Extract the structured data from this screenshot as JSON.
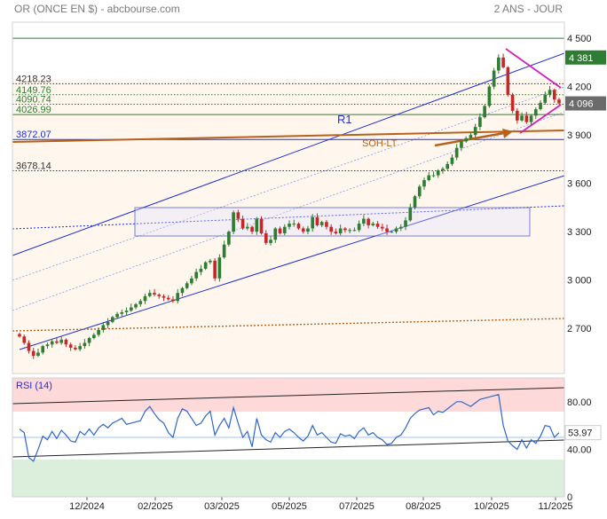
{
  "header": {
    "title": "OR (ONCE EN $) - abcbourse.com",
    "period": "2 ANS - JOUR"
  },
  "colors": {
    "up_candle": "#2e7d32",
    "down_candle": "#c62828",
    "channel": "#1f2fd6",
    "trend": "#b8611b",
    "triangle": "#d11fc0",
    "rsi_line": "#2f67c9",
    "rsi_overbought": "#fdd9d9",
    "rsi_oversold": "#dcefdc",
    "price_bg": "#fff7ee"
  },
  "chart_data": [
    {
      "type": "candlestick",
      "title": "OR (ONCE EN $) - abcbourse.com",
      "subtitle": "2 ANS - JOUR",
      "x_ticks": [
        "12/2024",
        "02/2025",
        "03/2025",
        "05/2025",
        "07/2025",
        "08/2025",
        "10/2025",
        "11/2025"
      ],
      "y_ticks": [
        2700,
        3000,
        3300,
        3600,
        3900,
        4200,
        4500
      ],
      "ylim": [
        2420,
        4600
      ],
      "current_price_label": "4 381",
      "last_price_label": "4 096",
      "levels": [
        {
          "label": "4218.23",
          "value": 4218.23,
          "style": "dotted",
          "color": "#333333"
        },
        {
          "label": "4149.76",
          "value": 4149.76,
          "style": "dotted",
          "color": "#2e7d32"
        },
        {
          "label": "4090.74",
          "value": 4090.74,
          "style": "dotted",
          "color": "#2e7d32"
        },
        {
          "label": "4026.99",
          "value": 4026.99,
          "style": "solid",
          "color": "#2e7d32"
        },
        {
          "label": "3872.07",
          "value": 3872.07,
          "style": "solid",
          "color": "#1f2fd6"
        },
        {
          "label": "3678.14",
          "value": 3678.14,
          "style": "dotted",
          "color": "#333333"
        }
      ],
      "annotations": [
        {
          "text": "R1",
          "color": "#1f2fd6"
        },
        {
          "text": "SOH-LT",
          "color": "#b8611b"
        }
      ],
      "close": [
        2650,
        2610,
        2560,
        2530,
        2550,
        2590,
        2600,
        2620,
        2610,
        2630,
        2600,
        2580,
        2570,
        2590,
        2610,
        2640,
        2660,
        2690,
        2720,
        2740,
        2770,
        2790,
        2800,
        2810,
        2830,
        2850,
        2870,
        2900,
        2920,
        2910,
        2900,
        2890,
        2880,
        2870,
        2920,
        2950,
        2980,
        3010,
        3050,
        3070,
        3110,
        3120,
        3010,
        3140,
        3220,
        3300,
        3420,
        3380,
        3320,
        3330,
        3300,
        3380,
        3290,
        3230,
        3250,
        3320,
        3290,
        3330,
        3350,
        3350,
        3320,
        3300,
        3320,
        3390,
        3340,
        3360,
        3330,
        3300,
        3290,
        3320,
        3310,
        3310,
        3310,
        3350,
        3380,
        3340,
        3350,
        3330,
        3320,
        3300,
        3300,
        3320,
        3330,
        3370,
        3450,
        3520,
        3580,
        3620,
        3650,
        3650,
        3680,
        3690,
        3720,
        3760,
        3820,
        3860,
        3880,
        3900,
        3950,
        4010,
        4080,
        4200,
        4300,
        4381,
        4320,
        4150,
        4050,
        3990,
        4020,
        3980,
        4020,
        4060,
        4100,
        4150,
        4180,
        4120,
        4096
      ],
      "rsi": {
        "label": "RSI (14)",
        "y_ticks": [
          0,
          40,
          80
        ],
        "ylim": [
          0,
          100
        ],
        "overbought": 70,
        "oversold": 30,
        "last_value_label": "53.97",
        "values": [
          57,
          54,
          33,
          30,
          40,
          51,
          48,
          55,
          49,
          56,
          52,
          47,
          46,
          55,
          52,
          57,
          52,
          58,
          61,
          58,
          62,
          64,
          66,
          61,
          62,
          63,
          64,
          72,
          76,
          70,
          65,
          62,
          54,
          50,
          66,
          74,
          72,
          66,
          60,
          62,
          68,
          72,
          52,
          60,
          66,
          58,
          75,
          62,
          50,
          55,
          42,
          66,
          52,
          48,
          46,
          54,
          50,
          55,
          57,
          54,
          50,
          47,
          51,
          60,
          52,
          54,
          50,
          46,
          45,
          53,
          51,
          52,
          49,
          55,
          58,
          52,
          54,
          50,
          48,
          44,
          45,
          50,
          52,
          58,
          66,
          70,
          73,
          74,
          75,
          69,
          72,
          71,
          74,
          77,
          80,
          80,
          78,
          76,
          79,
          82,
          83,
          84,
          85,
          86,
          60,
          47,
          43,
          40,
          48,
          41,
          48,
          45,
          51,
          60,
          59,
          50,
          53.97
        ]
      }
    }
  ]
}
